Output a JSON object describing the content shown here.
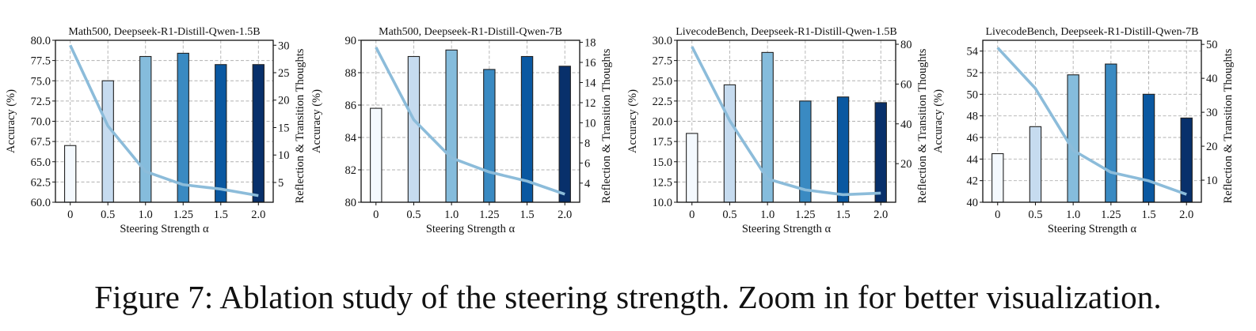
{
  "caption": "Figure 7: Ablation study of the steering strength. Zoom in for better visualization.",
  "bar_colors": [
    "#f4f9fe",
    "#c6dbef",
    "#85bcdc",
    "#3a8ac2",
    "#0a58a1",
    "#08306b"
  ],
  "line_color": "#8cbcda",
  "chart_data": [
    {
      "type": "bar+line",
      "title": "Math500, Deepseek-R1-Distill-Qwen-1.5B",
      "xlabel": "Steering Strength α",
      "ylabel": "Accuracy (%)",
      "y2label": "Reflection & Transition Thoughts",
      "categories": [
        "0",
        "0.5",
        "1.0",
        "1.25",
        "1.5",
        "2.0"
      ],
      "ylim": [
        60.0,
        80.0
      ],
      "yticks": [
        "60.0",
        "62.5",
        "65.0",
        "67.5",
        "70.0",
        "72.5",
        "75.0",
        "77.5",
        "80.0"
      ],
      "y2lim": [
        1.4,
        30.9
      ],
      "y2ticks": [
        "5",
        "10",
        "15",
        "20",
        "25",
        "30"
      ],
      "grid": true,
      "series": [
        {
          "name": "Accuracy",
          "kind": "bar",
          "axis": "left",
          "values": [
            67.0,
            75.0,
            78.0,
            78.4,
            77.0,
            77.0
          ]
        },
        {
          "name": "Reflection & Transition Thoughts",
          "kind": "line",
          "axis": "right",
          "values": [
            30.0,
            15.3,
            7.0,
            4.6,
            3.8,
            2.6
          ]
        }
      ]
    },
    {
      "type": "bar+line",
      "title": "Math500, Deepseek-R1-Distill-Qwen-7B",
      "xlabel": "Steering Strength α",
      "ylabel": "Accuracy (%)",
      "y2label": "Reflection & Transition Thoughts",
      "categories": [
        "0",
        "0.5",
        "1.0",
        "1.25",
        "1.5",
        "2.0"
      ],
      "ylim": [
        80,
        90
      ],
      "yticks": [
        "80",
        "82",
        "84",
        "86",
        "88",
        "90"
      ],
      "y2lim": [
        2.1,
        18.2
      ],
      "y2ticks": [
        "4",
        "6",
        "8",
        "10",
        "12",
        "14",
        "16",
        "18"
      ],
      "grid": true,
      "series": [
        {
          "name": "Accuracy",
          "kind": "bar",
          "axis": "left",
          "values": [
            85.8,
            89.0,
            89.4,
            88.2,
            89.0,
            88.4
          ]
        },
        {
          "name": "Reflection & Transition Thoughts",
          "kind": "line",
          "axis": "right",
          "values": [
            17.5,
            10.3,
            6.5,
            5.1,
            4.2,
            2.9
          ]
        }
      ]
    },
    {
      "type": "bar+line",
      "title": "LivecodeBench, Deepseek-R1-Distill-Qwen-1.5B",
      "xlabel": "Steering Strength α",
      "ylabel": "Accuracy (%)",
      "y2label": "Reflection & Transition Thoughts",
      "categories": [
        "0",
        "0.5",
        "1.0",
        "1.25",
        "1.5",
        "2.0"
      ],
      "ylim": [
        10.0,
        30.0
      ],
      "yticks": [
        "10.0",
        "12.5",
        "15.0",
        "17.5",
        "20.0",
        "22.5",
        "25.0",
        "27.5",
        "30.0"
      ],
      "y2lim": [
        0.6,
        82.0
      ],
      "y2ticks": [
        "20",
        "40",
        "60",
        "80"
      ],
      "grid": true,
      "series": [
        {
          "name": "Accuracy",
          "kind": "bar",
          "axis": "left",
          "values": [
            18.5,
            24.5,
            28.5,
            22.5,
            23.0,
            22.3
          ]
        },
        {
          "name": "Reflection & Transition Thoughts",
          "kind": "line",
          "axis": "right",
          "values": [
            78.8,
            41.6,
            12.3,
            6.8,
            4.4,
            5.2
          ]
        }
      ]
    },
    {
      "type": "bar+line",
      "title": "LivecodeBench, Deepseek-R1-Distill-Qwen-7B",
      "xlabel": "Steering Strength α",
      "ylabel": "Accuracy (%)",
      "y2label": "Reflection & Transition Thoughts",
      "categories": [
        "0",
        "0.5",
        "1.0",
        "1.25",
        "1.5",
        "2.0"
      ],
      "ylim": [
        40,
        55
      ],
      "yticks": [
        "40",
        "42",
        "44",
        "46",
        "48",
        "50",
        "52",
        "54"
      ],
      "y2lim": [
        3.5,
        51.2
      ],
      "y2ticks": [
        "10",
        "20",
        "30",
        "40",
        "50"
      ],
      "grid": true,
      "series": [
        {
          "name": "Accuracy",
          "kind": "bar",
          "axis": "left",
          "values": [
            44.5,
            47.0,
            51.8,
            52.8,
            50.0,
            47.8
          ]
        },
        {
          "name": "Reflection & Transition Thoughts",
          "kind": "line",
          "axis": "right",
          "values": [
            49.0,
            37.0,
            18.8,
            12.3,
            9.8,
            5.8
          ]
        }
      ]
    }
  ]
}
